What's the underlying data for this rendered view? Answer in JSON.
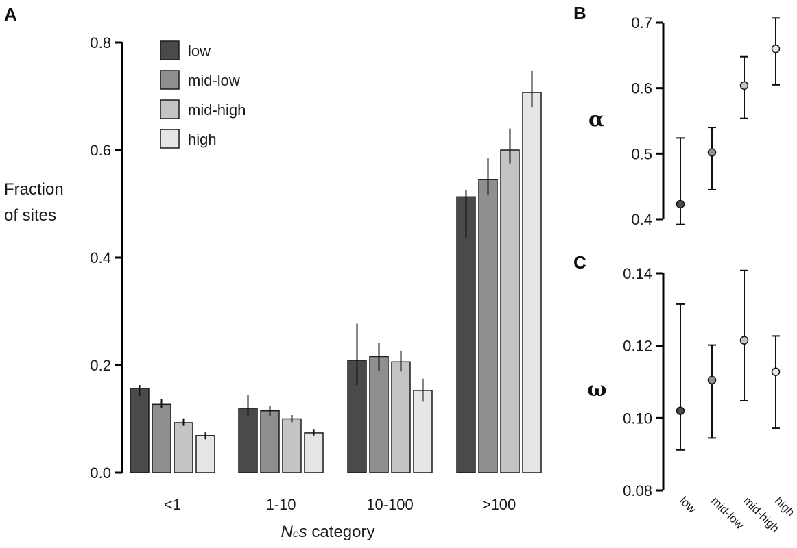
{
  "chart_data": [
    {
      "panel": "A",
      "type": "bar",
      "ylabel_lines": [
        "Fraction",
        "of sites"
      ],
      "xlabel_italic": "N",
      "xlabel_sub": "e",
      "xlabel_italic2": "s",
      "xlabel_rest": " category",
      "categories": [
        "<1",
        "1-10",
        "10-100",
        ">100"
      ],
      "ylim": [
        0,
        0.8
      ],
      "yticks": [
        "0.0",
        "0.2",
        "0.4",
        "0.6",
        "0.8"
      ],
      "legend_position": "top-left",
      "series": [
        {
          "name": "low",
          "color": "#4a4a4a",
          "values": [
            0.157,
            0.12,
            0.209,
            0.513
          ],
          "err_low": [
            0.143,
            0.104,
            0.163,
            0.437
          ],
          "err_high": [
            0.163,
            0.145,
            0.277,
            0.525
          ]
        },
        {
          "name": "mid-low",
          "color": "#8f8f8f",
          "values": [
            0.127,
            0.115,
            0.216,
            0.545
          ],
          "err_low": [
            0.12,
            0.106,
            0.19,
            0.516
          ],
          "err_high": [
            0.137,
            0.124,
            0.241,
            0.585
          ]
        },
        {
          "name": "mid-high",
          "color": "#c4c4c4",
          "values": [
            0.093,
            0.1,
            0.206,
            0.6
          ],
          "err_low": [
            0.087,
            0.094,
            0.188,
            0.575
          ],
          "err_high": [
            0.101,
            0.107,
            0.227,
            0.64
          ]
        },
        {
          "name": "high",
          "color": "#e6e6e6",
          "values": [
            0.069,
            0.074,
            0.153,
            0.707
          ],
          "err_low": [
            0.062,
            0.069,
            0.132,
            0.68
          ],
          "err_high": [
            0.075,
            0.08,
            0.175,
            0.748
          ]
        }
      ]
    },
    {
      "panel": "B",
      "type": "scatter",
      "ylabel": "α",
      "ylim": [
        0.4,
        0.7
      ],
      "yticks": [
        "0.4",
        "0.5",
        "0.6",
        "0.7"
      ],
      "points": [
        {
          "category": "low",
          "y": 0.423,
          "lo": 0.392,
          "hi": 0.524,
          "color": "#4a4a4a"
        },
        {
          "category": "mid-low",
          "y": 0.502,
          "lo": 0.445,
          "hi": 0.54,
          "color": "#8f8f8f"
        },
        {
          "category": "mid-high",
          "y": 0.604,
          "lo": 0.554,
          "hi": 0.648,
          "color": "#c4c4c4"
        },
        {
          "category": "high",
          "y": 0.66,
          "lo": 0.605,
          "hi": 0.707,
          "color": "#e6e6e6"
        }
      ]
    },
    {
      "panel": "C",
      "type": "scatter",
      "ylabel": "ω",
      "ylim": [
        0.08,
        0.14
      ],
      "yticks": [
        "0.08",
        "0.10",
        "0.12",
        "0.14"
      ],
      "categories": [
        "low",
        "mid-low",
        "mid-high",
        "high"
      ],
      "points": [
        {
          "category": "low",
          "y": 0.102,
          "lo": 0.0912,
          "hi": 0.1315,
          "color": "#4a4a4a"
        },
        {
          "category": "mid-low",
          "y": 0.1105,
          "lo": 0.0945,
          "hi": 0.1202,
          "color": "#8f8f8f"
        },
        {
          "category": "mid-high",
          "y": 0.1215,
          "lo": 0.1048,
          "hi": 0.1408,
          "color": "#c4c4c4"
        },
        {
          "category": "high",
          "y": 0.1128,
          "lo": 0.0972,
          "hi": 0.1227,
          "color": "#e6e6e6"
        }
      ]
    }
  ]
}
